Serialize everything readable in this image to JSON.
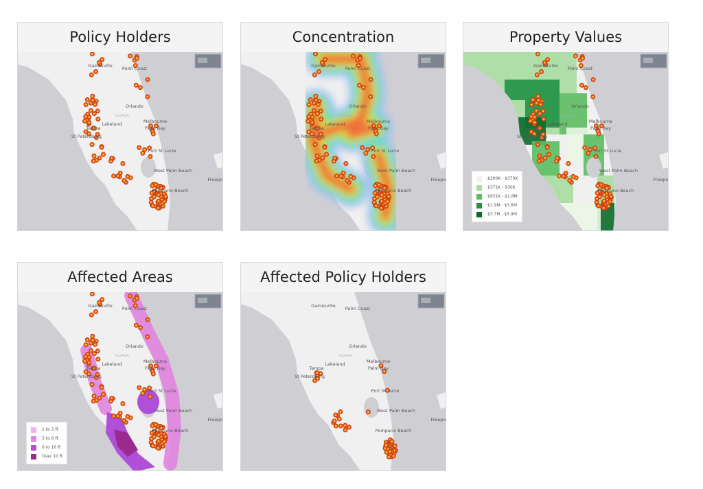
{
  "panels": [
    {
      "id": "policy-holders",
      "title": "Policy Holders",
      "layer": "dots-all"
    },
    {
      "id": "concentration",
      "title": "Concentration",
      "layer": "heatmap"
    },
    {
      "id": "property-values",
      "title": "Property Values",
      "layer": "choropleth"
    },
    {
      "id": "affected-areas",
      "title": "Affected Areas",
      "layer": "flood"
    },
    {
      "id": "affected-policy-holders",
      "title": "Affected Policy Holders",
      "layer": "dots-affected"
    }
  ],
  "map_labels": [
    "Gainesville",
    "Palm Coast",
    "Orlando",
    "FLORIDA",
    "Lakeland",
    "Tampa",
    "St Petersburg",
    "Melbourne",
    "Palm Bay",
    "Port St Lucie",
    "West Palm Beach",
    "Pompano Beach",
    "Freeport"
  ],
  "property_legend": [
    {
      "label": "$200K - $370K",
      "color": "#eaf6e6"
    },
    {
      "label": "$371K - 930K",
      "color": "#a9dca0"
    },
    {
      "label": "$931K - $1.8M",
      "color": "#5cbd5f"
    },
    {
      "label": "$1.9M - $3.6M",
      "color": "#219146"
    },
    {
      "label": "$3.7M - $5.9M",
      "color": "#0b6a2a"
    }
  ],
  "flood_legend": [
    {
      "label": "1 to 3 ft",
      "color": "#eeb4e8"
    },
    {
      "label": "3 to 6 ft",
      "color": "#e184df"
    },
    {
      "label": "6 to 10 ft",
      "color": "#b04fd8"
    },
    {
      "label": "Over 10 ft",
      "color": "#9a2b8f"
    }
  ],
  "colors": {
    "water": "#cfcfd3",
    "land": "#f0f0f0",
    "dot": "#e8541c",
    "dot_center": "#ffcf3a"
  },
  "icons": {
    "basemap": "basemap-thumbnail-icon"
  }
}
